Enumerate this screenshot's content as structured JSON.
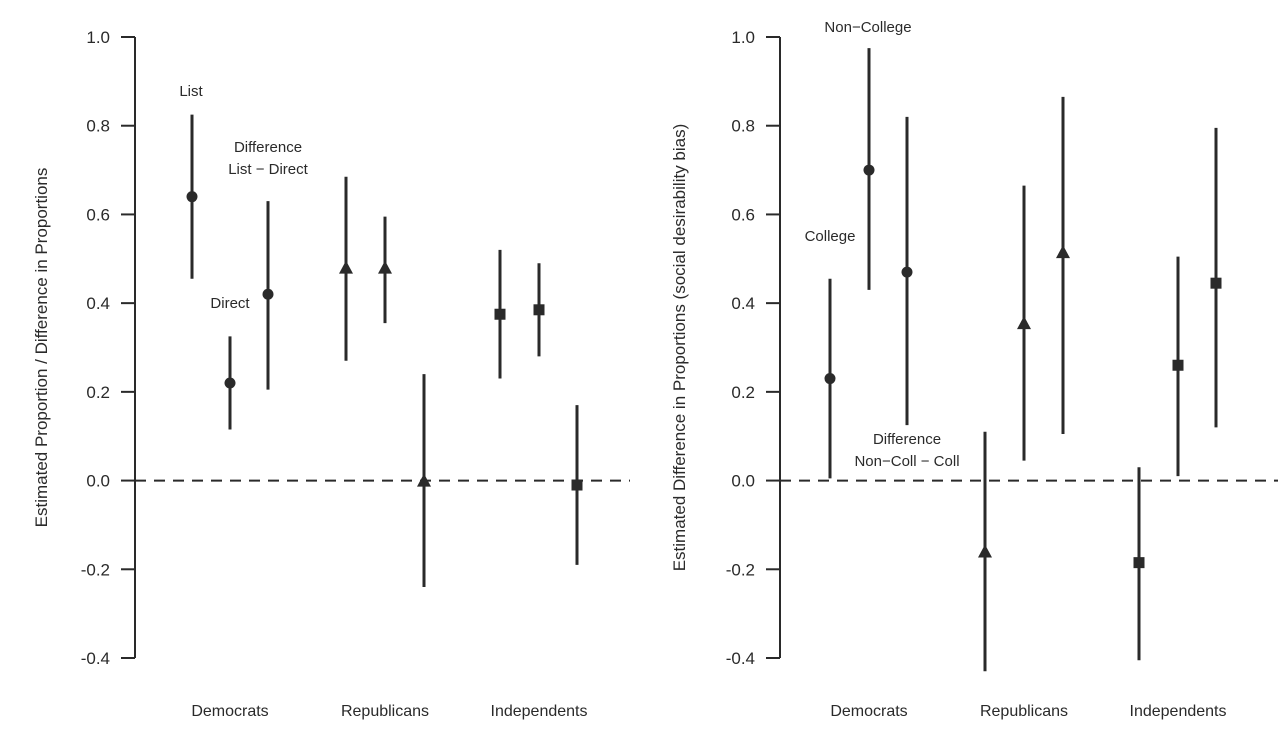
{
  "chart_data": [
    {
      "type": "scatter",
      "title": "",
      "xlabel": "",
      "ylabel": "Estimated Proportion / Difference in Proportions",
      "ylim": [
        -0.4,
        1.0
      ],
      "yticks": [
        "1.0",
        "0.8",
        "0.6",
        "0.4",
        "0.2",
        "0.0",
        "-0.2",
        "-0.4"
      ],
      "reference_line_y": 0,
      "grid": false,
      "categories": [
        "Democrats",
        "Republicans",
        "Independents"
      ],
      "points": [
        {
          "category": "Democrats",
          "position": 1,
          "marker": "circle",
          "estimate": 0.64,
          "lower": 0.455,
          "upper": 0.825
        },
        {
          "category": "Democrats",
          "position": 2,
          "marker": "circle",
          "estimate": 0.22,
          "lower": 0.115,
          "upper": 0.325
        },
        {
          "category": "Democrats",
          "position": 3,
          "marker": "circle",
          "estimate": 0.42,
          "lower": 0.205,
          "upper": 0.63
        },
        {
          "category": "Republicans",
          "position": 1,
          "marker": "triangle",
          "estimate": 0.48,
          "lower": 0.27,
          "upper": 0.685
        },
        {
          "category": "Republicans",
          "position": 2,
          "marker": "triangle",
          "estimate": 0.48,
          "lower": 0.355,
          "upper": 0.595
        },
        {
          "category": "Republicans",
          "position": 3,
          "marker": "triangle",
          "estimate": 0.0,
          "lower": -0.24,
          "upper": 0.24
        },
        {
          "category": "Independents",
          "position": 1,
          "marker": "square",
          "estimate": 0.375,
          "lower": 0.23,
          "upper": 0.52
        },
        {
          "category": "Independents",
          "position": 2,
          "marker": "square",
          "estimate": 0.385,
          "lower": 0.28,
          "upper": 0.49
        },
        {
          "category": "Independents",
          "position": 3,
          "marker": "square",
          "estimate": -0.01,
          "lower": -0.19,
          "upper": 0.17
        }
      ],
      "annotations": [
        {
          "id": "list",
          "lines": [
            "List"
          ]
        },
        {
          "id": "direct",
          "lines": [
            "Direct"
          ]
        },
        {
          "id": "difference",
          "lines": [
            "Difference",
            "List − Direct"
          ]
        }
      ]
    },
    {
      "type": "scatter",
      "title": "",
      "xlabel": "",
      "ylabel": "Estimated  Difference in Proportions (social desirability bias)",
      "ylim": [
        -0.4,
        1.0
      ],
      "yticks": [
        "1.0",
        "0.8",
        "0.6",
        "0.4",
        "0.2",
        "0.0",
        "-0.2",
        "-0.4"
      ],
      "reference_line_y": 0,
      "grid": false,
      "categories": [
        "Democrats",
        "Republicans",
        "Independents"
      ],
      "points": [
        {
          "category": "Democrats",
          "position": 1,
          "marker": "circle",
          "estimate": 0.23,
          "lower": 0.005,
          "upper": 0.455
        },
        {
          "category": "Democrats",
          "position": 2,
          "marker": "circle",
          "estimate": 0.7,
          "lower": 0.43,
          "upper": 0.975
        },
        {
          "category": "Democrats",
          "position": 3,
          "marker": "circle",
          "estimate": 0.47,
          "lower": 0.125,
          "upper": 0.82
        },
        {
          "category": "Republicans",
          "position": 1,
          "marker": "triangle",
          "estimate": -0.16,
          "lower": -0.43,
          "upper": 0.11
        },
        {
          "category": "Republicans",
          "position": 2,
          "marker": "triangle",
          "estimate": 0.355,
          "lower": 0.045,
          "upper": 0.665
        },
        {
          "category": "Republicans",
          "position": 3,
          "marker": "triangle",
          "estimate": 0.515,
          "lower": 0.105,
          "upper": 0.865
        },
        {
          "category": "Independents",
          "position": 1,
          "marker": "square",
          "estimate": -0.185,
          "lower": -0.405,
          "upper": 0.03
        },
        {
          "category": "Independents",
          "position": 2,
          "marker": "square",
          "estimate": 0.26,
          "lower": 0.01,
          "upper": 0.505
        },
        {
          "category": "Independents",
          "position": 3,
          "marker": "square",
          "estimate": 0.445,
          "lower": 0.12,
          "upper": 0.795
        }
      ],
      "annotations": [
        {
          "id": "college",
          "lines": [
            "College"
          ]
        },
        {
          "id": "noncollege",
          "lines": [
            "Non−College"
          ]
        },
        {
          "id": "difference",
          "lines": [
            "Difference",
            "Non−Coll − Coll"
          ]
        }
      ]
    }
  ],
  "colors": {
    "ink": "#2a2a2a",
    "background": "#ffffff"
  }
}
